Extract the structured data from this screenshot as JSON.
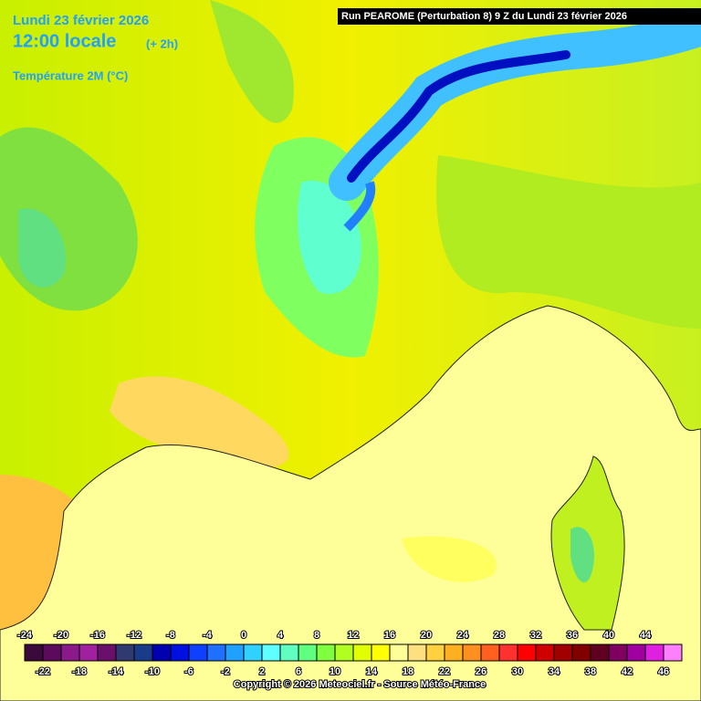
{
  "header": {
    "date": "Lundi 23 février 2026",
    "time": "12:00 locale",
    "offset": "(+ 2h)",
    "parameter": "Température 2M (°C)",
    "run": "Run PEAROME (Perturbation 8) 9 Z du Lundi 23 février 2026"
  },
  "legend": {
    "labels": [
      -24,
      -22,
      -20,
      -18,
      -16,
      -14,
      -12,
      -10,
      -8,
      -6,
      -4,
      -2,
      0,
      2,
      4,
      6,
      8,
      10,
      12,
      14,
      16,
      18,
      20,
      22,
      24,
      26,
      28,
      30,
      32,
      34,
      36,
      38,
      40,
      42,
      44,
      46
    ],
    "colors": [
      "#3a0a3a",
      "#5c0a5c",
      "#8a1a8a",
      "#a020a0",
      "#6a106a",
      "#303a70",
      "#1a3a8a",
      "#0000b0",
      "#0010e0",
      "#1040ff",
      "#2070ff",
      "#20a0ff",
      "#30d0ff",
      "#60ffff",
      "#60ffc0",
      "#60ff80",
      "#80ff40",
      "#b0ff20",
      "#e0ff00",
      "#ffff00",
      "#ffff9a",
      "#ffe080",
      "#ffd040",
      "#ffb020",
      "#ff9020",
      "#ff6020",
      "#ff3030",
      "#ff0000",
      "#d00000",
      "#a00000",
      "#800000",
      "#600020",
      "#800060",
      "#a000a0",
      "#e020e0",
      "#ff80ff"
    ]
  },
  "footer": {
    "copyright": "Copyright © 2026 Meteociel.fr - Source Météo-France"
  }
}
